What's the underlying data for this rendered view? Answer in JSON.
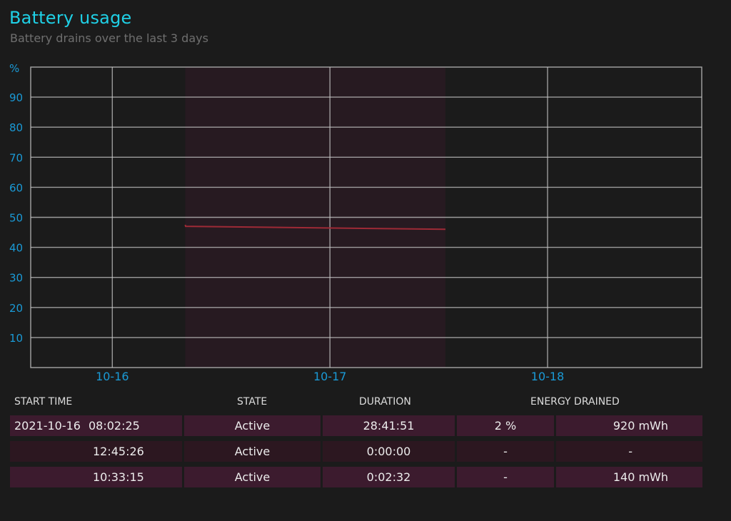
{
  "header": {
    "title": "Battery usage",
    "subtitle": "Battery drains over the last 3 days"
  },
  "colors": {
    "accent": "#1fd0e6",
    "axis_label": "#1a9ad6",
    "grid": "#c8c8c8",
    "active_band": "#271a21",
    "line": "#9e2a36",
    "row_dark": "#3c1b2e",
    "row_light": "#2c1720"
  },
  "chart_data": {
    "type": "line",
    "ylabel": "%",
    "ylim": [
      0,
      100
    ],
    "yticks": [
      10,
      20,
      30,
      40,
      50,
      60,
      70,
      80,
      90
    ],
    "xlim": [
      "2021-10-15T15:00:00",
      "2021-10-18T17:00:00"
    ],
    "xticks": [
      {
        "label": "10-16",
        "t": "2021-10-16T00:00:00"
      },
      {
        "label": "10-17",
        "t": "2021-10-17T00:00:00"
      },
      {
        "label": "10-18",
        "t": "2021-10-18T00:00:00"
      }
    ],
    "grid": true,
    "shaded_ranges": [
      {
        "start": "2021-10-16T08:02:25",
        "end": "2021-10-17T12:44:16",
        "state": "Active"
      }
    ],
    "series": [
      {
        "points": [
          {
            "t": "2021-10-16T08:02:25",
            "y": 47.5
          },
          {
            "t": "2021-10-16T08:05:00",
            "y": 47
          },
          {
            "t": "2021-10-17T12:44:16",
            "y": 46
          }
        ]
      }
    ]
  },
  "table": {
    "headers": {
      "start_time": "START TIME",
      "state": "STATE",
      "duration": "DURATION",
      "energy_drained": "ENERGY DRAINED"
    },
    "rows": [
      {
        "date": "2021-10-16",
        "time": "08:02:25",
        "state": "Active",
        "duration": "28:41:51",
        "percent": "2 %",
        "mwh": "920 mWh"
      },
      {
        "date": "",
        "time": "12:45:26",
        "state": "Active",
        "duration": "0:00:00",
        "percent": "-",
        "mwh": "-"
      },
      {
        "date": "",
        "time": "10:33:15",
        "state": "Active",
        "duration": "0:02:32",
        "percent": "-",
        "mwh": "140 mWh"
      }
    ]
  }
}
